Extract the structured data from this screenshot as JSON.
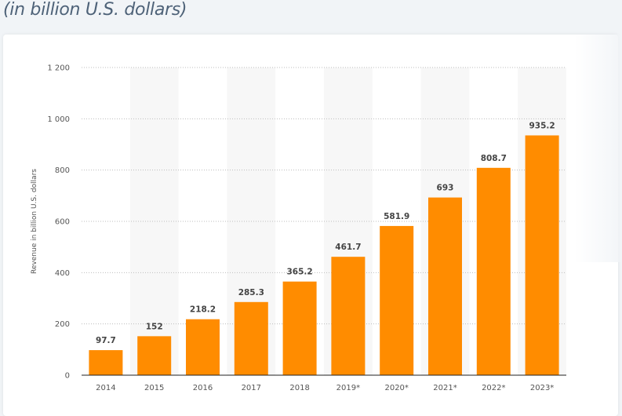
{
  "header": {
    "subtitle": "(in billion U.S. dollars)"
  },
  "colors": {
    "bar": "#ff8c00",
    "band": "#f7f7f7",
    "grid": "#bdbdbd"
  },
  "chart_data": {
    "type": "bar",
    "title": "",
    "xlabel": "",
    "ylabel": "Revenue in billion U.S. dollars",
    "ylim": [
      0,
      1200
    ],
    "yticks": [
      0,
      200,
      400,
      600,
      800,
      1000,
      1200
    ],
    "ytick_labels": [
      "0",
      "200",
      "400",
      "600",
      "800",
      "1 000",
      "1 200"
    ],
    "grid": true,
    "categories": [
      "2014",
      "2015",
      "2016",
      "2017",
      "2018",
      "2019*",
      "2020*",
      "2021*",
      "2022*",
      "2023*"
    ],
    "values": [
      97.7,
      152,
      218.2,
      285.3,
      365.2,
      461.7,
      581.9,
      693,
      808.7,
      935.2
    ],
    "value_labels": [
      "97.7",
      "152",
      "218.2",
      "285.3",
      "365.2",
      "461.7",
      "581.9",
      "693",
      "808.7",
      "935.2"
    ]
  }
}
